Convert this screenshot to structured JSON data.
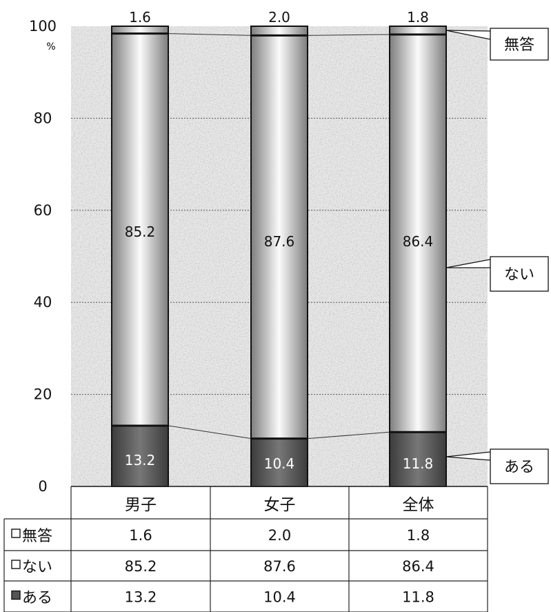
{
  "chart_data": {
    "type": "bar",
    "stacked": true,
    "categories": [
      "男子",
      "女子",
      "全体"
    ],
    "series": [
      {
        "name": "ある",
        "values": [
          13.2,
          10.4,
          11.8
        ],
        "color": "#5a5a5a"
      },
      {
        "name": "ない",
        "values": [
          85.2,
          87.6,
          86.4
        ],
        "color": "#c8c8c8"
      },
      {
        "name": "無答",
        "values": [
          1.6,
          2.0,
          1.8
        ],
        "color": "#bdbdbd"
      }
    ],
    "ylim": [
      0,
      100
    ],
    "y_ticks": [
      "0",
      "20",
      "40",
      "60",
      "80",
      "100"
    ],
    "y_unit": "%",
    "grid": "dotted horizontal",
    "value_labels": {
      "top": [
        "1.6",
        "2.0",
        "1.8"
      ],
      "middle": [
        "85.2",
        "87.6",
        "86.4"
      ],
      "bottom": [
        "13.2",
        "10.4",
        "11.8"
      ]
    },
    "callouts": [
      "無答",
      "ない",
      "ある"
    ],
    "data_table": {
      "header": [
        "男子",
        "女子",
        "全体"
      ],
      "rows": [
        {
          "label": "無答",
          "values": [
            "1.6",
            "2.0",
            "1.8"
          ]
        },
        {
          "label": "ない",
          "values": [
            "85.2",
            "87.6",
            "86.4"
          ]
        },
        {
          "label": "ある",
          "values": [
            "13.2",
            "10.4",
            "11.8"
          ]
        }
      ]
    }
  }
}
